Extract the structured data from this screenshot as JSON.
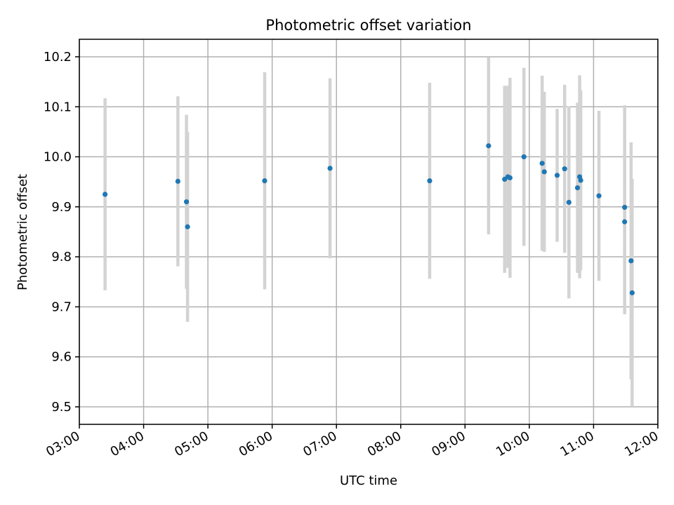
{
  "chart_data": {
    "type": "scatter",
    "title": "Photometric offset variation",
    "xlabel": "UTC time",
    "ylabel": "Photometric offset",
    "x_ticks": [
      "03:00",
      "04:00",
      "05:00",
      "06:00",
      "07:00",
      "08:00",
      "09:00",
      "10:00",
      "11:00",
      "12:00"
    ],
    "y_ticks": [
      "9.5",
      "9.6",
      "9.7",
      "9.8",
      "9.9",
      "10.0",
      "10.1",
      "10.2"
    ],
    "xlim": [
      "03:00",
      "12:00"
    ],
    "ylim": [
      9.465,
      10.235
    ],
    "grid": true,
    "marker_color": "#1f77b4",
    "errorbar_color": "#d3d3d3",
    "points": [
      {
        "time": "03:24",
        "y": 9.925,
        "err": 0.192
      },
      {
        "time": "04:32",
        "y": 9.951,
        "err": 0.17
      },
      {
        "time": "04:40",
        "y": 9.91,
        "err": 0.174
      },
      {
        "time": "04:41",
        "y": 9.86,
        "err": 0.19
      },
      {
        "time": "05:53",
        "y": 9.952,
        "err": 0.217
      },
      {
        "time": "06:54",
        "y": 9.977,
        "err": 0.18
      },
      {
        "time": "08:27",
        "y": 9.952,
        "err": 0.196
      },
      {
        "time": "09:22",
        "y": 10.022,
        "err": 0.177
      },
      {
        "time": "09:37",
        "y": 9.955,
        "err": 0.187
      },
      {
        "time": "09:40",
        "y": 9.96,
        "err": 0.182
      },
      {
        "time": "09:42",
        "y": 9.958,
        "err": 0.2
      },
      {
        "time": "09:55",
        "y": 10.0,
        "err": 0.178
      },
      {
        "time": "10:12",
        "y": 9.987,
        "err": 0.175
      },
      {
        "time": "10:14",
        "y": 9.97,
        "err": 0.16
      },
      {
        "time": "10:26",
        "y": 9.963,
        "err": 0.133
      },
      {
        "time": "10:33",
        "y": 9.976,
        "err": 0.168
      },
      {
        "time": "10:37",
        "y": 9.909,
        "err": 0.192
      },
      {
        "time": "10:45",
        "y": 9.938,
        "err": 0.17
      },
      {
        "time": "10:47",
        "y": 9.96,
        "err": 0.203
      },
      {
        "time": "10:48",
        "y": 9.953,
        "err": 0.18
      },
      {
        "time": "11:05",
        "y": 9.922,
        "err": 0.17
      },
      {
        "time": "11:29",
        "y": 9.899,
        "err": 0.204
      },
      {
        "time": "11:29",
        "y": 9.87,
        "err": 0.185
      },
      {
        "time": "11:35",
        "y": 9.792,
        "err": 0.237
      },
      {
        "time": "11:36",
        "y": 9.728,
        "err": 0.228
      }
    ]
  }
}
